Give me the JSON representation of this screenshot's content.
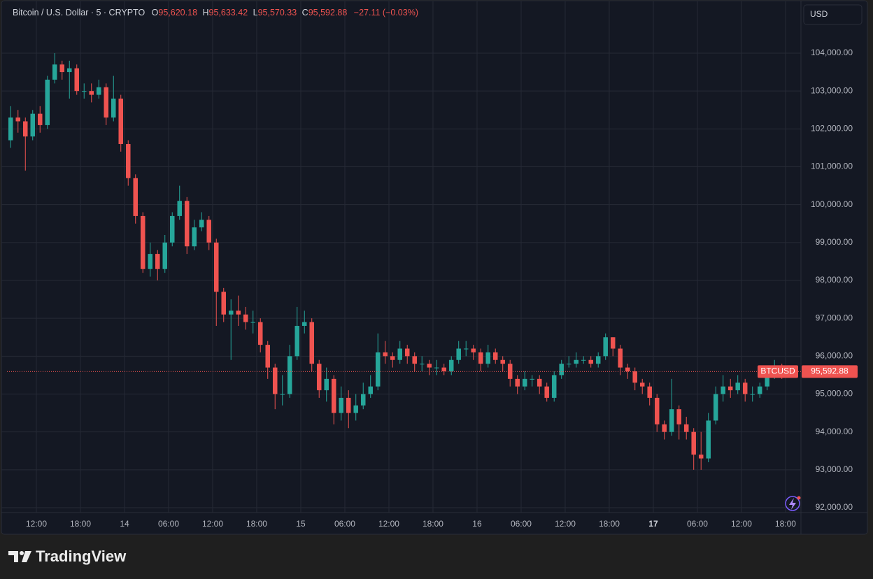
{
  "chart_data": {
    "type": "candlestick",
    "header": {
      "symbol": "Bitcoin / U.S. Dollar · 5 · CRYPTO",
      "ohlc": [
        {
          "key": "O",
          "value": "95,620.18"
        },
        {
          "key": "H",
          "value": "95,633.42"
        },
        {
          "key": "L",
          "value": "95,570.33"
        },
        {
          "key": "C",
          "value": "95,592.88"
        }
      ],
      "change": "−27.11 (−0.03%)"
    },
    "currency": "USD",
    "symbol_tag": "BTCUSD",
    "last_price": 95592.88,
    "last_price_label": "95,592.88",
    "brand": "TradingView",
    "up_color": "#26a69a",
    "down_color": "#ef5350",
    "grid": true,
    "xlim": [
      0,
      108.1
    ],
    "xticks": [
      {
        "value": 4,
        "label": "12:00"
      },
      {
        "value": 10,
        "label": "18:00"
      },
      {
        "value": 16,
        "label": "14"
      },
      {
        "value": 22,
        "label": "06:00"
      },
      {
        "value": 28,
        "label": "12:00"
      },
      {
        "value": 34,
        "label": "18:00"
      },
      {
        "value": 40,
        "label": "15"
      },
      {
        "value": 46,
        "label": "06:00"
      },
      {
        "value": 52,
        "label": "12:00"
      },
      {
        "value": 58,
        "label": "18:00"
      },
      {
        "value": 64,
        "label": "16"
      },
      {
        "value": 70,
        "label": "06:00"
      },
      {
        "value": 76,
        "label": "12:00"
      },
      {
        "value": 82,
        "label": "18:00"
      },
      {
        "value": 88,
        "label": "17",
        "bold": true
      },
      {
        "value": 94,
        "label": "06:00"
      },
      {
        "value": 100,
        "label": "12:00"
      },
      {
        "value": 106,
        "label": "18:00"
      }
    ],
    "ylim": [
      91871,
      105366
    ],
    "yticks": [
      {
        "value": 92000,
        "label": "92,000.00"
      },
      {
        "value": 93000,
        "label": "93,000.00"
      },
      {
        "value": 94000,
        "label": "94,000.00"
      },
      {
        "value": 95000,
        "label": "95,000.00"
      },
      {
        "value": 96000,
        "label": "96,000.00"
      },
      {
        "value": 97000,
        "label": "97,000.00"
      },
      {
        "value": 98000,
        "label": "98,000.00"
      },
      {
        "value": 99000,
        "label": "99,000.00"
      },
      {
        "value": 100000,
        "label": "100,000.00"
      },
      {
        "value": 101000,
        "label": "101,000.00"
      },
      {
        "value": 102000,
        "label": "102,000.00"
      },
      {
        "value": 103000,
        "label": "103,000.00"
      },
      {
        "value": 104000,
        "label": "104,000.00"
      }
    ],
    "x": [
      0.5,
      1.5,
      2.5,
      3.5,
      4.5,
      5.5,
      6.5,
      7.5,
      8.5,
      9.5,
      10.5,
      11.5,
      12.5,
      13.5,
      14.5,
      15.5,
      16.5,
      17.5,
      18.5,
      19.5,
      20.5,
      21.5,
      22.5,
      23.5,
      24.5,
      25.5,
      26.5,
      27.5,
      28.5,
      29.5,
      30.5,
      31.5,
      32.5,
      33.5,
      34.5,
      35.5,
      36.5,
      37.5,
      38.5,
      39.5,
      40.5,
      41.5,
      42.5,
      43.5,
      44.5,
      45.5,
      46.5,
      47.5,
      48.5,
      49.5,
      50.5,
      51.5,
      52.5,
      53.5,
      54.5,
      55.5,
      56.5,
      57.5,
      58.5,
      59.5,
      60.5,
      61.5,
      62.5,
      63.5,
      64.5,
      65.5,
      66.5,
      67.5,
      68.5,
      69.5,
      70.5,
      71.5,
      72.5,
      73.5,
      74.5,
      75.5,
      76.5,
      77.5,
      78.5,
      79.5,
      80.5,
      81.5,
      82.5,
      83.5,
      84.5,
      85.5,
      86.5,
      87.5,
      88.5,
      89.5,
      90.5,
      91.5,
      92.5,
      93.5,
      94.5,
      95.5,
      96.5,
      97.5,
      98.5,
      99.5,
      100.5,
      101.5,
      102.5,
      103.5,
      104.5,
      105.5
    ],
    "candles": [
      [
        101700,
        102600,
        101500,
        102300
      ],
      [
        102300,
        102500,
        101900,
        102200
      ],
      [
        102200,
        102300,
        100900,
        101800
      ],
      [
        101800,
        102500,
        101700,
        102400
      ],
      [
        102400,
        102600,
        101900,
        102100
      ],
      [
        102100,
        103400,
        102000,
        103300
      ],
      [
        103300,
        104000,
        103200,
        103700
      ],
      [
        103700,
        103800,
        103300,
        103500
      ],
      [
        103500,
        103800,
        102800,
        103600
      ],
      [
        103600,
        103700,
        102900,
        103000
      ],
      [
        103000,
        103200,
        102800,
        103000
      ],
      [
        103000,
        103200,
        102700,
        102900
      ],
      [
        102900,
        103300,
        102800,
        103100
      ],
      [
        103100,
        103200,
        102100,
        102300
      ],
      [
        102300,
        103400,
        102200,
        102800
      ],
      [
        102800,
        102900,
        101400,
        101600
      ],
      [
        101600,
        101700,
        100500,
        100700
      ],
      [
        100700,
        100800,
        99500,
        99700
      ],
      [
        99700,
        99800,
        98200,
        98300
      ],
      [
        98300,
        99000,
        98100,
        98700
      ],
      [
        98700,
        98800,
        98000,
        98300
      ],
      [
        98300,
        99200,
        98200,
        99000
      ],
      [
        99000,
        99800,
        98900,
        99700
      ],
      [
        99700,
        100500,
        99600,
        100100
      ],
      [
        100100,
        100200,
        98700,
        98900
      ],
      [
        98900,
        99600,
        98800,
        99400
      ],
      [
        99400,
        99800,
        99300,
        99600
      ],
      [
        99600,
        99700,
        98800,
        99000
      ],
      [
        99000,
        99100,
        96800,
        97700
      ],
      [
        97700,
        97800,
        96900,
        97100
      ],
      [
        97100,
        97500,
        95900,
        97200
      ],
      [
        97200,
        97600,
        96800,
        97100
      ],
      [
        97100,
        97300,
        96700,
        96900
      ],
      [
        96900,
        97200,
        96600,
        96900
      ],
      [
        96900,
        97000,
        96100,
        96300
      ],
      [
        96300,
        96400,
        95400,
        95700
      ],
      [
        95700,
        95800,
        94600,
        95000
      ],
      [
        95000,
        95500,
        94700,
        95000
      ],
      [
        95000,
        96300,
        94900,
        96000
      ],
      [
        96000,
        97300,
        95900,
        96800
      ],
      [
        96800,
        97200,
        96600,
        96900
      ],
      [
        96900,
        97000,
        95600,
        95800
      ],
      [
        95800,
        95900,
        94900,
        95100
      ],
      [
        95100,
        95700,
        94800,
        95400
      ],
      [
        95400,
        95500,
        94200,
        94500
      ],
      [
        94500,
        95200,
        94300,
        94900
      ],
      [
        94900,
        95100,
        94100,
        94500
      ],
      [
        94500,
        95000,
        94300,
        94700
      ],
      [
        94700,
        95300,
        94600,
        95000
      ],
      [
        95000,
        95500,
        94900,
        95200
      ],
      [
        95200,
        96600,
        95100,
        96100
      ],
      [
        96100,
        96400,
        95800,
        96000
      ],
      [
        96000,
        96100,
        95700,
        95900
      ],
      [
        95900,
        96400,
        95800,
        96200
      ],
      [
        96200,
        96300,
        95800,
        96000
      ],
      [
        96000,
        96100,
        95600,
        95800
      ],
      [
        95800,
        96000,
        95600,
        95800
      ],
      [
        95800,
        95900,
        95500,
        95700
      ],
      [
        95700,
        95900,
        95500,
        95700
      ],
      [
        95700,
        95800,
        95500,
        95600
      ],
      [
        95600,
        96000,
        95500,
        95900
      ],
      [
        95900,
        96400,
        95800,
        96200
      ],
      [
        96200,
        96400,
        96000,
        96200
      ],
      [
        96200,
        96300,
        95900,
        96100
      ],
      [
        96100,
        96200,
        95600,
        95800
      ],
      [
        95800,
        96300,
        95700,
        96100
      ],
      [
        96100,
        96200,
        95800,
        95900
      ],
      [
        95900,
        96000,
        95600,
        95800
      ],
      [
        95800,
        95900,
        95200,
        95400
      ],
      [
        95400,
        95500,
        95000,
        95200
      ],
      [
        95200,
        95600,
        95100,
        95400
      ],
      [
        95400,
        95500,
        95200,
        95400
      ],
      [
        95400,
        95500,
        95000,
        95200
      ],
      [
        95200,
        95300,
        94800,
        94900
      ],
      [
        94900,
        95600,
        94800,
        95500
      ],
      [
        95500,
        95900,
        95400,
        95800
      ],
      [
        95800,
        96000,
        95700,
        95800
      ],
      [
        95800,
        96100,
        95700,
        95900
      ],
      [
        95900,
        96000,
        95800,
        95900
      ],
      [
        95900,
        96000,
        95700,
        95800
      ],
      [
        95800,
        96100,
        95700,
        96000
      ],
      [
        96000,
        96600,
        95900,
        96500
      ],
      [
        96500,
        96500,
        96000,
        96200
      ],
      [
        96200,
        96300,
        95500,
        95700
      ],
      [
        95700,
        95800,
        95400,
        95600
      ],
      [
        95600,
        95700,
        95100,
        95300
      ],
      [
        95300,
        95400,
        95000,
        95200
      ],
      [
        95200,
        95300,
        94700,
        94900
      ],
      [
        94900,
        95000,
        94000,
        94200
      ],
      [
        94200,
        94300,
        93800,
        94000
      ],
      [
        94000,
        95400,
        93900,
        94600
      ],
      [
        94600,
        94700,
        93800,
        94200
      ],
      [
        94200,
        94400,
        93800,
        94000
      ],
      [
        94000,
        94100,
        93000,
        93400
      ],
      [
        93400,
        94000,
        93000,
        93300
      ],
      [
        93300,
        94500,
        93200,
        94300
      ],
      [
        94300,
        95200,
        94200,
        95000
      ],
      [
        95000,
        95500,
        94800,
        95200
      ],
      [
        95200,
        95400,
        94900,
        95100
      ],
      [
        95100,
        95500,
        95000,
        95300
      ],
      [
        95300,
        95400,
        94800,
        95000
      ],
      [
        95000,
        95200,
        94800,
        95000
      ],
      [
        95000,
        95300,
        94900,
        95200
      ],
      [
        95200,
        95700,
        95100,
        95500
      ],
      [
        95500,
        95900,
        95400,
        95700
      ],
      [
        95700,
        95800,
        95400,
        95592.88
      ]
    ]
  }
}
